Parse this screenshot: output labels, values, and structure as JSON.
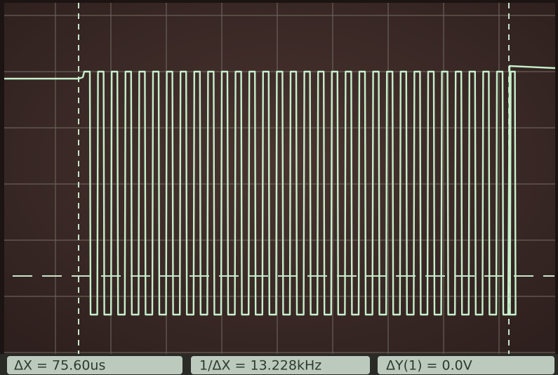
{
  "readouts": {
    "delta_x": "ΔX = 75.60us",
    "inverse_delta_x": "1/ΔX = 13.228kHz",
    "delta_y": "ΔY(1) = 0.0V"
  }
}
